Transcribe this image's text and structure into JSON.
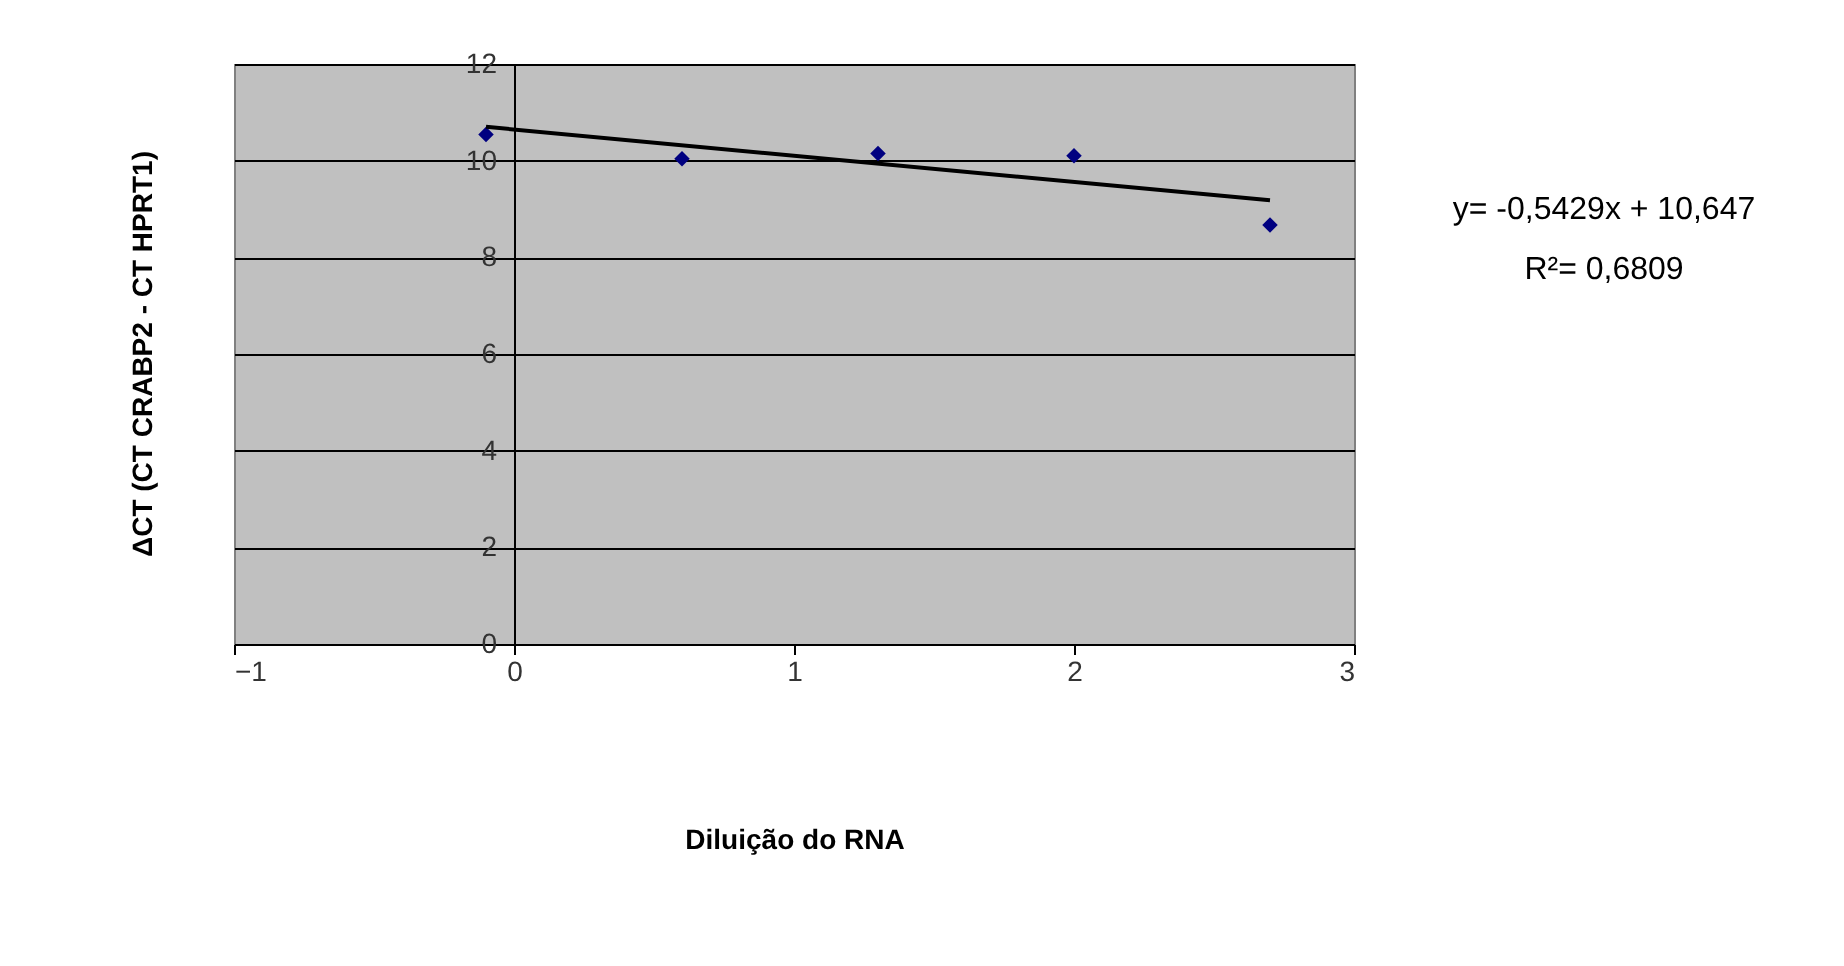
{
  "chart_data": {
    "type": "scatter",
    "xlabel": "Diluição do RNA",
    "ylabel": "ΔCT (CT CRABP2 - CT HPRT1)",
    "series": [
      {
        "color": "#000080",
        "marker": "diamond",
        "x": [
          -0.1,
          0.6,
          1.3,
          2.0,
          2.7
        ],
        "values": [
          10.54,
          10.04,
          10.15,
          10.1,
          8.67
        ]
      },
      {
        "type": "line",
        "color": "#000000",
        "marker": "none",
        "line_style": "solid",
        "x": [
          -0.1,
          2.7
        ],
        "values": [
          10.7,
          9.18
        ]
      }
    ],
    "xlim": [
      -1,
      3
    ],
    "xticks": [
      -1,
      0,
      1,
      2,
      3
    ],
    "ylim": [
      0,
      12
    ],
    "yticks": [
      0,
      2,
      4,
      6,
      8,
      10,
      12
    ],
    "grid": "y",
    "annotations": [
      "y= -0,5429x + 10,647",
      "R²= 0,6809"
    ]
  }
}
